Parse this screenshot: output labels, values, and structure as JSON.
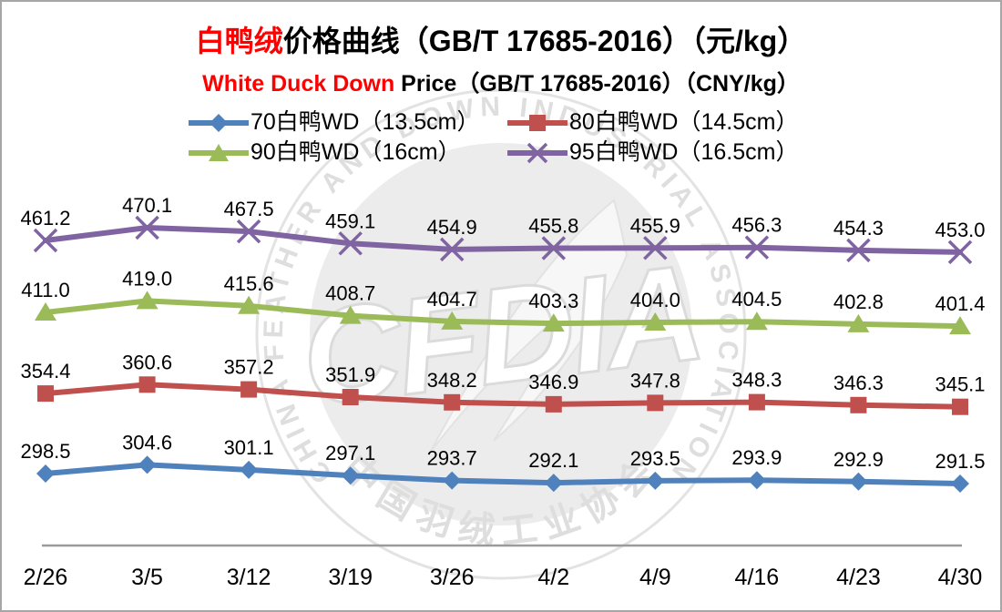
{
  "title": {
    "highlight": "白鸭绒",
    "rest": "价格曲线（GB/T 17685-2016）（元/kg）",
    "highlight_color": "#ff0000"
  },
  "subtitle": {
    "highlight": "White Duck Down",
    "rest": " Price（GB/T 17685-2016）（CNY/kg）",
    "highlight_color": "#ff0000"
  },
  "legend": [
    {
      "label": "70白鸭WD（13.5cm）",
      "color": "#4F81BD",
      "marker": "diamond"
    },
    {
      "label": "80白鸭WD（14.5cm）",
      "color": "#C0504D",
      "marker": "square"
    },
    {
      "label": "90白鸭WD（16cm）",
      "color": "#9BBB59",
      "marker": "triangle"
    },
    {
      "label": "95白鸭WD（16.5cm）",
      "color": "#8064A2",
      "marker": "x"
    }
  ],
  "watermark": {
    "ring_text": "CHINA FEATHER AND DOWN INDUSTRIAL ASSOCIATION",
    "bottom_text": "中国羽绒工业协会",
    "center_text": "CFDIA",
    "color": "#dedede"
  },
  "colors": {
    "axis_line": "#9b9b9b",
    "frame_border": "#a6a6a6",
    "label_text": "#000000"
  },
  "chart_data": {
    "type": "line",
    "title": "白鸭绒价格曲线（GB/T 17685-2016）（元/kg）",
    "subtitle": "White Duck Down Price（GB/T 17685-2016）（CNY/kg）",
    "xlabel": "",
    "ylabel": "",
    "grid": false,
    "data_labels": true,
    "legend_position": "top",
    "ylim": [
      249,
      480
    ],
    "categories": [
      "2/26",
      "3/5",
      "3/12",
      "3/19",
      "3/26",
      "4/2",
      "4/9",
      "4/16",
      "4/23",
      "4/30"
    ],
    "series": [
      {
        "name": "70白鸭WD（13.5cm）",
        "marker": "diamond",
        "color": "#4F81BD",
        "values": [
          298.5,
          304.6,
          301.1,
          297.1,
          293.7,
          292.1,
          293.5,
          293.9,
          292.9,
          291.5
        ]
      },
      {
        "name": "80白鸭WD（14.5cm）",
        "marker": "square",
        "color": "#C0504D",
        "values": [
          354.4,
          360.6,
          357.2,
          351.9,
          348.2,
          346.9,
          347.8,
          348.3,
          346.3,
          345.1
        ]
      },
      {
        "name": "90白鸭WD（16cm）",
        "marker": "triangle",
        "color": "#9BBB59",
        "values": [
          411.0,
          419.0,
          415.6,
          408.7,
          404.7,
          403.3,
          404.0,
          404.5,
          402.8,
          401.4
        ]
      },
      {
        "name": "95白鸭WD（16.5cm）",
        "marker": "x",
        "color": "#8064A2",
        "values": [
          461.2,
          470.1,
          467.5,
          459.1,
          454.9,
          455.8,
          455.9,
          456.3,
          454.3,
          453.0
        ]
      }
    ]
  }
}
